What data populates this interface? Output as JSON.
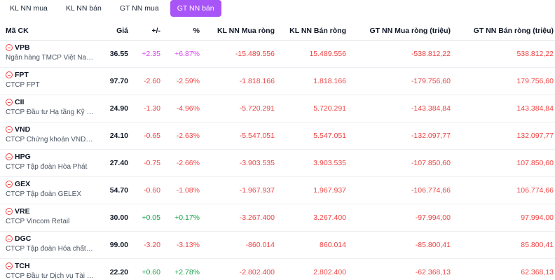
{
  "tabs": [
    {
      "label": "KL NN mua",
      "active": false
    },
    {
      "label": "KL NN bán",
      "active": false
    },
    {
      "label": "GT NN mua",
      "active": false
    },
    {
      "label": "GT NN bán",
      "active": true
    }
  ],
  "columns": {
    "symbol": "Mã CK",
    "price": "Giá",
    "change": "+/-",
    "pct": "%",
    "kl_mua_rong": "KL NN Mua ròng",
    "kl_ban_rong": "KL NN Bán ròng",
    "gt_mua_rong": "GT NN Mua ròng (triệu)",
    "gt_ban_rong": "GT NN Bán ròng (triệu)"
  },
  "colors": {
    "accent": "#a855f7",
    "down": "#ef4444",
    "up": "#16a34a",
    "ceiling": "#d946ef"
  },
  "rows": [
    {
      "symbol": "VPB",
      "company": "Ngân hàng TMCP Việt Nam...",
      "price": "36.55",
      "change": "+2.35",
      "pct": "+6.87%",
      "direction": "ceiling",
      "kl_mua_rong": "-15.489.556",
      "kl_ban_rong": "15.489.556",
      "gt_mua_rong": "-538.812,22",
      "gt_ban_rong": "538.812,22"
    },
    {
      "symbol": "FPT",
      "company": "CTCP FPT",
      "price": "97.70",
      "change": "-2.60",
      "pct": "-2.59%",
      "direction": "down",
      "kl_mua_rong": "-1.818.166",
      "kl_ban_rong": "1.818.166",
      "gt_mua_rong": "-179.756,60",
      "gt_ban_rong": "179.756,60"
    },
    {
      "symbol": "CII",
      "company": "CTCP Đầu tư Hạ tầng Kỹ th...",
      "price": "24.90",
      "change": "-1.30",
      "pct": "-4.96%",
      "direction": "down",
      "kl_mua_rong": "-5.720.291",
      "kl_ban_rong": "5.720.291",
      "gt_mua_rong": "-143.384,84",
      "gt_ban_rong": "143.384,84"
    },
    {
      "symbol": "VND",
      "company": "CTCP Chứng khoán VNDIR...",
      "price": "24.10",
      "change": "-0.65",
      "pct": "-2.63%",
      "direction": "down",
      "kl_mua_rong": "-5.547.051",
      "kl_ban_rong": "5.547.051",
      "gt_mua_rong": "-132.097,77",
      "gt_ban_rong": "132.097,77"
    },
    {
      "symbol": "HPG",
      "company": "CTCP Tập đoàn Hòa Phát",
      "price": "27.40",
      "change": "-0.75",
      "pct": "-2.66%",
      "direction": "down",
      "kl_mua_rong": "-3.903.535",
      "kl_ban_rong": "3.903.535",
      "gt_mua_rong": "-107.850,60",
      "gt_ban_rong": "107.850,60"
    },
    {
      "symbol": "GEX",
      "company": "CTCP Tập đoàn GELEX",
      "price": "54.70",
      "change": "-0.60",
      "pct": "-1.08%",
      "direction": "down",
      "kl_mua_rong": "-1.967.937",
      "kl_ban_rong": "1.967.937",
      "gt_mua_rong": "-106.774,66",
      "gt_ban_rong": "106.774,66"
    },
    {
      "symbol": "VRE",
      "company": "CTCP Vincom Retail",
      "price": "30.00",
      "change": "+0.05",
      "pct": "+0.17%",
      "direction": "up",
      "kl_mua_rong": "-3.267.400",
      "kl_ban_rong": "3.267.400",
      "gt_mua_rong": "-97.994,00",
      "gt_ban_rong": "97.994,00"
    },
    {
      "symbol": "DGC",
      "company": "CTCP Tập đoàn Hóa chất Đ...",
      "price": "99.00",
      "change": "-3.20",
      "pct": "-3.13%",
      "direction": "down",
      "kl_mua_rong": "-860.014",
      "kl_ban_rong": "860.014",
      "gt_mua_rong": "-85.800,41",
      "gt_ban_rong": "85.800,41"
    },
    {
      "symbol": "TCH",
      "company": "CTCP Đầu tư Dịch vụ Tài ch...",
      "price": "22.20",
      "change": "+0.60",
      "pct": "+2.78%",
      "direction": "up",
      "kl_mua_rong": "-2.802.400",
      "kl_ban_rong": "2.802.400",
      "gt_mua_rong": "-62.368,13",
      "gt_ban_rong": "62.368,13"
    }
  ]
}
